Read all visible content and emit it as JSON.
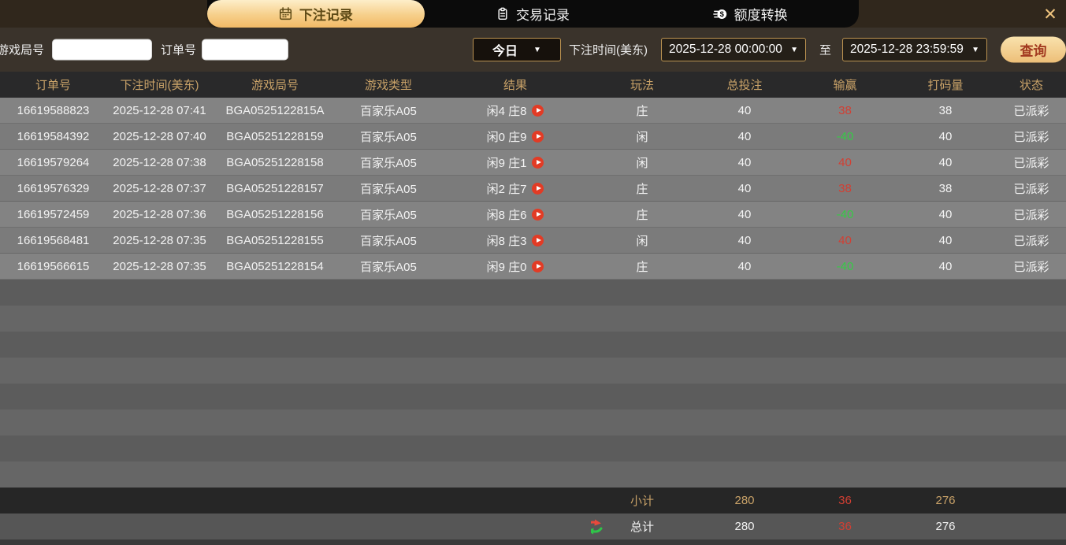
{
  "colors": {
    "accent_gold": "#c9a268",
    "win_red": "#d23f33",
    "loss_green": "#35cb45"
  },
  "tabs": [
    {
      "label": "下注记录",
      "icon": "calendar-icon",
      "active": true
    },
    {
      "label": "交易记录",
      "icon": "clipboard-icon",
      "active": false
    },
    {
      "label": "额度转换",
      "icon": "coin-transfer-icon",
      "active": false
    }
  ],
  "close_label": "✕",
  "filters": {
    "game_round_label": "游戏局号",
    "game_round_value": "",
    "order_no_label": "订单号",
    "order_no_value": "",
    "range_preset": "今日",
    "caret": "▼",
    "bet_time_label": "下注时间(美东)",
    "start_time": "2025-12-28 00:00:00",
    "to_label": "至",
    "end_time": "2025-12-28 23:59:59",
    "search_label": "查询"
  },
  "table": {
    "columns": [
      "订单号",
      "下注时间(美东)",
      "游戏局号",
      "游戏类型",
      "结果",
      "玩法",
      "总投注",
      "输赢",
      "打码量",
      "状态"
    ],
    "rows": [
      {
        "order": "16619588823",
        "time": "2025-12-28 07:41",
        "round": "BGA0525122815A",
        "type": "百家乐A05",
        "result": "闲4 庄8",
        "play": "庄",
        "bet": "40",
        "winloss": "38",
        "wl_color": "red",
        "turnover": "38",
        "status": "已派彩"
      },
      {
        "order": "16619584392",
        "time": "2025-12-28 07:40",
        "round": "BGA05251228159",
        "type": "百家乐A05",
        "result": "闲0 庄9",
        "play": "闲",
        "bet": "40",
        "winloss": "-40",
        "wl_color": "green",
        "turnover": "40",
        "status": "已派彩"
      },
      {
        "order": "16619579264",
        "time": "2025-12-28 07:38",
        "round": "BGA05251228158",
        "type": "百家乐A05",
        "result": "闲9 庄1",
        "play": "闲",
        "bet": "40",
        "winloss": "40",
        "wl_color": "red",
        "turnover": "40",
        "status": "已派彩"
      },
      {
        "order": "16619576329",
        "time": "2025-12-28 07:37",
        "round": "BGA05251228157",
        "type": "百家乐A05",
        "result": "闲2 庄7",
        "play": "庄",
        "bet": "40",
        "winloss": "38",
        "wl_color": "red",
        "turnover": "38",
        "status": "已派彩"
      },
      {
        "order": "16619572459",
        "time": "2025-12-28 07:36",
        "round": "BGA05251228156",
        "type": "百家乐A05",
        "result": "闲8 庄6",
        "play": "庄",
        "bet": "40",
        "winloss": "-40",
        "wl_color": "green",
        "turnover": "40",
        "status": "已派彩"
      },
      {
        "order": "16619568481",
        "time": "2025-12-28 07:35",
        "round": "BGA05251228155",
        "type": "百家乐A05",
        "result": "闲8 庄3",
        "play": "闲",
        "bet": "40",
        "winloss": "40",
        "wl_color": "red",
        "turnover": "40",
        "status": "已派彩"
      },
      {
        "order": "16619566615",
        "time": "2025-12-28 07:35",
        "round": "BGA05251228154",
        "type": "百家乐A05",
        "result": "闲9 庄0",
        "play": "庄",
        "bet": "40",
        "winloss": "-40",
        "wl_color": "green",
        "turnover": "40",
        "status": "已派彩"
      }
    ],
    "empty_row_count": 8,
    "subtotal": {
      "label": "小计",
      "bet": "280",
      "winloss": "36",
      "turnover": "276"
    },
    "total": {
      "label": "总计",
      "bet": "280",
      "winloss": "36",
      "turnover": "276"
    }
  }
}
